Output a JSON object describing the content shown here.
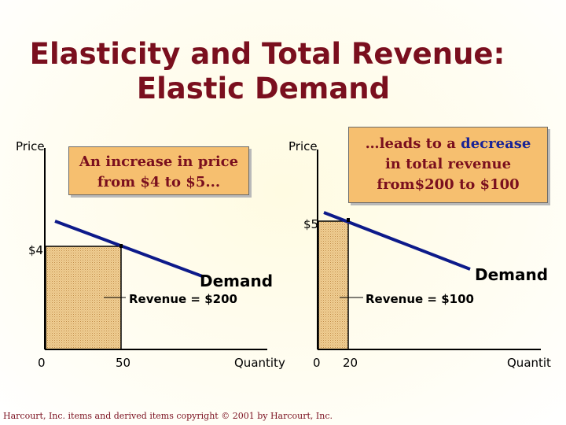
{
  "title": {
    "line1": "Elasticity and Total Revenue:",
    "line2": "Elastic Demand"
  },
  "left_graph": {
    "y_axis_label": "Price",
    "x_axis_label": "Quantity",
    "price_tick": "$4",
    "origin_tick": "0",
    "quantity_tick": "50",
    "curve_label": "Demand",
    "revenue_label": "Revenue = $200",
    "callout_lines": [
      "An increase in price",
      "from $4 to $5..."
    ]
  },
  "right_graph": {
    "y_axis_label": "Price",
    "x_axis_label": "Quantit",
    "price_tick": "$5",
    "origin_tick": "0",
    "quantity_tick": "20",
    "curve_label": "Demand",
    "revenue_label": "Revenue = $100",
    "callout": {
      "prefix": "…leads to a ",
      "highlight": "decrease",
      "line2": "in total revenue",
      "line3": "from$200 to $100"
    }
  },
  "footer": "Harcourt, Inc. items and derived items copyright © 2001 by Harcourt, Inc.",
  "colors": {
    "title": "#7a0f1e",
    "demand_line": "#0d1a8a",
    "revenue_fill": "#e9c27f",
    "callout_bg": "#f6bf6f",
    "highlight": "#1a2496"
  }
}
